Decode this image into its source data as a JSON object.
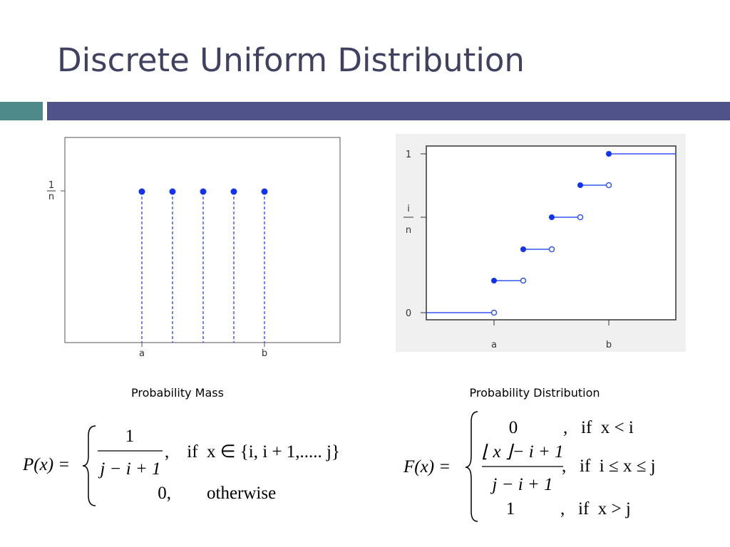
{
  "header": {
    "title": "Discrete Uniform Distribution"
  },
  "left_plot": {
    "y_label_num": "1",
    "y_label_den": "n",
    "x_labels": [
      "a",
      "b"
    ],
    "caption": "Probability Mass"
  },
  "right_plot": {
    "y_labels": [
      "1",
      "0"
    ],
    "y_mid_num": "i",
    "y_mid_den": "n",
    "x_labels": [
      "a",
      "b"
    ],
    "caption": "Probability Distribution"
  },
  "pmf_formula": {
    "lhs": "P(x) =",
    "numerator": "1",
    "denominator": "j − i + 1",
    "case1": ",    if  x ∈ {i, i + 1,..... j}",
    "case2_value": "0,",
    "case2": "otherwise"
  },
  "cdf_formula": {
    "lhs": "F(x) =",
    "row1_value": "0",
    "row1": ",   if  x < i",
    "row2_numerator": "⌊ x ⌋− i + 1",
    "row2_denominator": "j − i + 1",
    "row2": ",   if  i ≤ x ≤ j",
    "row3_value": "1",
    "row3": ",   if  x > j"
  }
}
